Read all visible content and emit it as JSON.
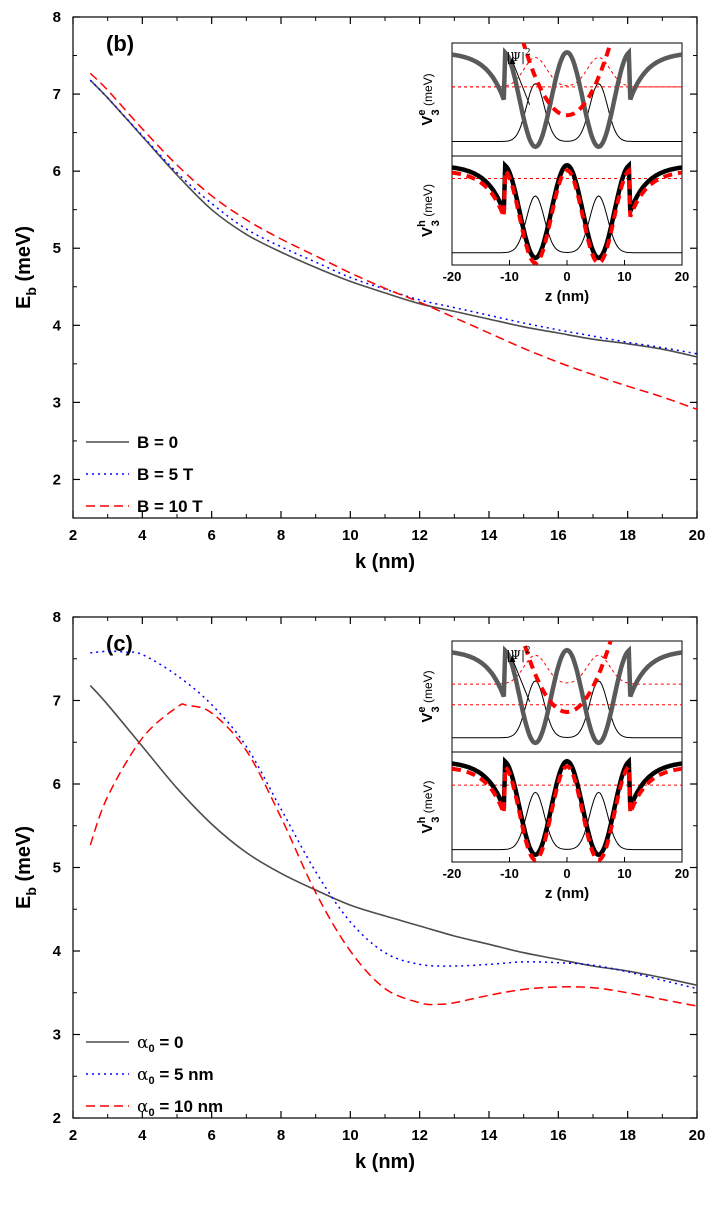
{
  "colors": {
    "series_a": "#4d4d4d",
    "series_b": "#0000ff",
    "series_c": "#ff0000",
    "inset_pot_e": "#5a5a5a",
    "inset_pot_h": "#000000"
  },
  "chart_data": [
    {
      "type": "line",
      "panel_label": "(b)",
      "xlabel": "k (nm)",
      "ylabel_main": "E",
      "ylabel_sub": "b",
      "ylabel_unit": " (meV)",
      "xlim": [
        2,
        20
      ],
      "ylim": [
        1.5,
        8
      ],
      "xticks": [
        2,
        4,
        6,
        8,
        10,
        12,
        14,
        16,
        18,
        20
      ],
      "yticks": [
        2,
        3,
        4,
        5,
        6,
        7,
        8
      ],
      "legend_position": "bottom-left",
      "series": [
        {
          "name": "B = 0",
          "legend_prefix": "",
          "legend_sub": "",
          "legend_rest": "B = 0",
          "style": "solid",
          "x": [
            2.5,
            3,
            4,
            5,
            6,
            7,
            8,
            9,
            10,
            11,
            12,
            13,
            14,
            15,
            16,
            17,
            18,
            19,
            20
          ],
          "y": [
            7.18,
            6.95,
            6.45,
            5.95,
            5.5,
            5.18,
            4.95,
            4.75,
            4.57,
            4.42,
            4.28,
            4.18,
            4.08,
            3.98,
            3.9,
            3.82,
            3.76,
            3.69,
            3.59
          ]
        },
        {
          "name": "B = 5 T",
          "legend_prefix": "",
          "legend_sub": "",
          "legend_rest": "B = 5 T",
          "style": "dotted",
          "x": [
            2.5,
            3,
            4,
            5,
            6,
            7,
            8,
            9,
            10,
            11,
            12,
            13,
            14,
            15,
            16,
            17,
            18,
            19,
            20
          ],
          "y": [
            7.18,
            6.95,
            6.46,
            5.98,
            5.58,
            5.25,
            5.02,
            4.82,
            4.62,
            4.47,
            4.33,
            4.23,
            4.13,
            4.03,
            3.94,
            3.86,
            3.78,
            3.71,
            3.63
          ]
        },
        {
          "name": "B = 10 T",
          "legend_prefix": "",
          "legend_sub": "",
          "legend_rest": "B = 10 T",
          "style": "dashed",
          "x": [
            2.5,
            3,
            4,
            5,
            6,
            7,
            8,
            9,
            10,
            11,
            12,
            13,
            14,
            15,
            16,
            17,
            18,
            19,
            20
          ],
          "y": [
            7.27,
            7.05,
            6.55,
            6.08,
            5.68,
            5.37,
            5.12,
            4.9,
            4.68,
            4.48,
            4.3,
            4.1,
            3.9,
            3.7,
            3.52,
            3.36,
            3.21,
            3.07,
            2.91
          ]
        }
      ],
      "inset": {
        "xlabel": "z (nm)",
        "xticks": [
          -20,
          -10,
          0,
          10,
          20
        ],
        "xlim": [
          -20,
          20
        ],
        "ylabel_top_main": "V",
        "ylabel_top_sup": "e",
        "ylabel_top_sub": "3",
        "ylabel_top_unit": " (meV)",
        "ylabel_bottom_main": "V",
        "ylabel_bottom_sup": "h",
        "ylabel_bottom_sub": "3",
        "ylabel_bottom_unit": " (meV)",
        "psi_label": "|Ψ|",
        "psi_exp": "2",
        "top_red_level": 0.62,
        "bottom_red_level": 0.82
      }
    },
    {
      "type": "line",
      "panel_label": "(c)",
      "xlabel": "k (nm)",
      "ylabel_main": "E",
      "ylabel_sub": "b",
      "ylabel_unit": " (meV)",
      "xlim": [
        2,
        20
      ],
      "ylim": [
        2,
        8
      ],
      "xticks": [
        2,
        4,
        6,
        8,
        10,
        12,
        14,
        16,
        18,
        20
      ],
      "yticks": [
        2,
        3,
        4,
        5,
        6,
        7,
        8
      ],
      "legend_position": "bottom-left",
      "series": [
        {
          "name": "α0 = 0",
          "legend_prefix": "α",
          "legend_sub": "0",
          "legend_rest": " = 0",
          "style": "solid",
          "x": [
            2.5,
            3,
            4,
            5,
            6,
            7,
            8,
            9,
            10,
            11,
            12,
            13,
            14,
            15,
            16,
            17,
            18,
            19,
            20
          ],
          "y": [
            7.18,
            6.95,
            6.45,
            5.95,
            5.52,
            5.18,
            4.93,
            4.73,
            4.55,
            4.42,
            4.3,
            4.18,
            4.08,
            3.98,
            3.9,
            3.82,
            3.76,
            3.68,
            3.59
          ]
        },
        {
          "name": "α0 = 5 nm",
          "legend_prefix": "α",
          "legend_sub": "0",
          "legend_rest": " = 5 nm",
          "style": "dotted",
          "x": [
            2.5,
            3,
            3.5,
            4,
            5,
            6,
            7,
            8,
            9,
            10,
            11,
            12,
            13,
            14,
            15,
            16,
            17,
            18,
            19,
            20
          ],
          "y": [
            7.57,
            7.59,
            7.58,
            7.55,
            7.3,
            6.95,
            6.45,
            5.7,
            4.95,
            4.35,
            3.98,
            3.84,
            3.82,
            3.84,
            3.87,
            3.86,
            3.83,
            3.75,
            3.65,
            3.55
          ]
        },
        {
          "name": "α0 = 10 nm",
          "legend_prefix": "α",
          "legend_sub": "0",
          "legend_rest": " = 10 nm",
          "style": "dashed",
          "x": [
            2.5,
            3,
            4,
            5,
            5.3,
            6,
            7,
            8,
            9,
            10,
            11,
            12,
            12.5,
            13,
            14,
            15,
            16,
            17,
            18,
            19,
            20
          ],
          "y": [
            5.27,
            5.85,
            6.55,
            6.92,
            6.94,
            6.85,
            6.4,
            5.6,
            4.7,
            4.0,
            3.55,
            3.38,
            3.36,
            3.38,
            3.47,
            3.54,
            3.57,
            3.56,
            3.5,
            3.42,
            3.34
          ]
        }
      ],
      "inset": {
        "xlabel": "z (nm)",
        "xticks": [
          -20,
          -10,
          0,
          10,
          20
        ],
        "xlim": [
          -20,
          20
        ],
        "ylabel_top_main": "V",
        "ylabel_top_sup": "e",
        "ylabel_top_sub": "3",
        "ylabel_top_unit": " (meV)",
        "ylabel_bottom_main": "V",
        "ylabel_bottom_sup": "h",
        "ylabel_bottom_sub": "3",
        "ylabel_bottom_unit": " (meV)",
        "psi_label": "|Ψ|",
        "psi_exp": "2",
        "top_red_level": 0.42,
        "bottom_red_level": 0.72
      }
    }
  ]
}
